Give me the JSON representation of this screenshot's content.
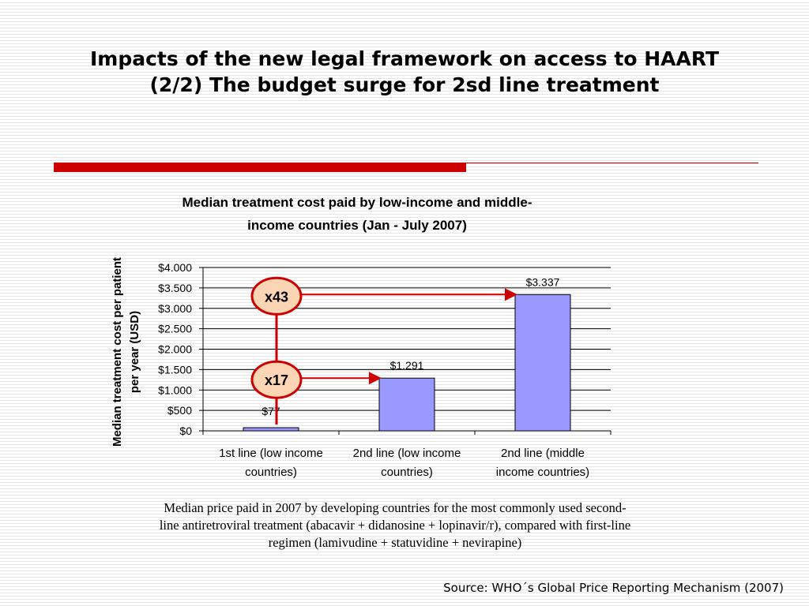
{
  "slide": {
    "title_line1": "Impacts of the new legal framework on access to HAART",
    "title_line2": "(2/2) The budget surge for 2sd line treatment",
    "caption_line1": "Median price paid in 2007 by developing countries for the most commonly used second-",
    "caption_line2": "line antiretroviral treatment (abacavir + didanosine + lopinavir/r), compared with first-line",
    "caption_line3": "regimen (lamivudine + statuvidine + nevirapine)",
    "source": "Source: WHO´s Global Price Reporting Mechanism (2007)",
    "accent_color": "#cc0000"
  },
  "chart_data": {
    "type": "bar",
    "title_lines": [
      "Median treatment cost paid by low-income and middle-",
      "income countries (Jan - July 2007)"
    ],
    "ylabel_lines": [
      "Median treatment cost per patient",
      "per year (USD)"
    ],
    "categories": [
      [
        "1st line (low income",
        "countries)"
      ],
      [
        "2nd line (low income",
        "countries)"
      ],
      [
        "2nd line (middle",
        "income countries)"
      ]
    ],
    "values": [
      77,
      1291,
      3337
    ],
    "data_labels": [
      "$77",
      "$1.291",
      "$3.337"
    ],
    "y_ticks": [
      0,
      500,
      1000,
      1500,
      2000,
      2500,
      3000,
      3500,
      4000
    ],
    "y_tick_labels": [
      "$0",
      "$500",
      "$1.000",
      "$1.500",
      "$2.000",
      "$2.500",
      "$3.000",
      "$3.500",
      "$4.000"
    ],
    "ylim": [
      0,
      4000
    ],
    "grid": true,
    "bar_color": "#9999ff",
    "annotations": [
      {
        "text": "x43",
        "from_category": 0,
        "to_category": 2,
        "y": 3337
      },
      {
        "text": "x17",
        "from_category": 0,
        "to_category": 1,
        "y": 1291
      }
    ]
  }
}
